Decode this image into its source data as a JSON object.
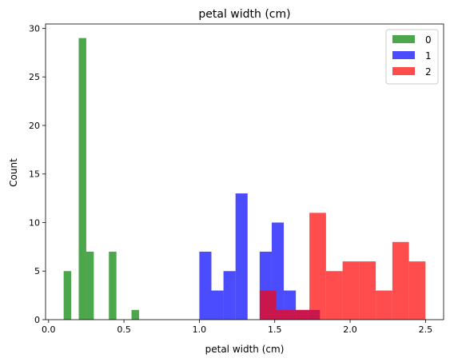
{
  "chart_data": {
    "type": "bar",
    "title": "petal width (cm)",
    "xlabel": "petal width (cm)",
    "ylabel": "Count",
    "xlim": [
      -0.02,
      2.62
    ],
    "ylim": [
      0,
      30.45
    ],
    "xticks": [
      0.0,
      0.5,
      1.0,
      1.5,
      2.0,
      2.5
    ],
    "xtick_labels": [
      "0.0",
      "0.5",
      "1.0",
      "1.5",
      "2.0",
      "2.5"
    ],
    "yticks": [
      0,
      5,
      10,
      15,
      20,
      25,
      30
    ],
    "ytick_labels": [
      "0",
      "5",
      "10",
      "15",
      "20",
      "25",
      "30"
    ],
    "grid": false,
    "legend_position": "top-right",
    "alpha": 0.7,
    "series": [
      {
        "name": "0",
        "color": "#008000",
        "bin_edges": [
          0.1,
          0.15,
          0.2,
          0.25,
          0.3,
          0.35,
          0.4,
          0.45,
          0.5,
          0.55,
          0.6
        ],
        "counts": [
          5,
          0,
          29,
          7,
          0,
          0,
          7,
          0,
          0,
          1
        ]
      },
      {
        "name": "1",
        "color": "#0000ff",
        "bin_edges": [
          1.0,
          1.08,
          1.16,
          1.24,
          1.32,
          1.4,
          1.48,
          1.56,
          1.64,
          1.72,
          1.8
        ],
        "counts": [
          7,
          3,
          5,
          13,
          0,
          7,
          10,
          3,
          1,
          1
        ]
      },
      {
        "name": "2",
        "color": "#ff0000",
        "bin_edges": [
          1.4,
          1.51,
          1.62,
          1.73,
          1.84,
          1.95,
          2.06,
          2.17,
          2.28,
          2.39,
          2.5
        ],
        "counts": [
          3,
          1,
          1,
          11,
          5,
          6,
          6,
          3,
          8,
          6
        ]
      }
    ]
  }
}
